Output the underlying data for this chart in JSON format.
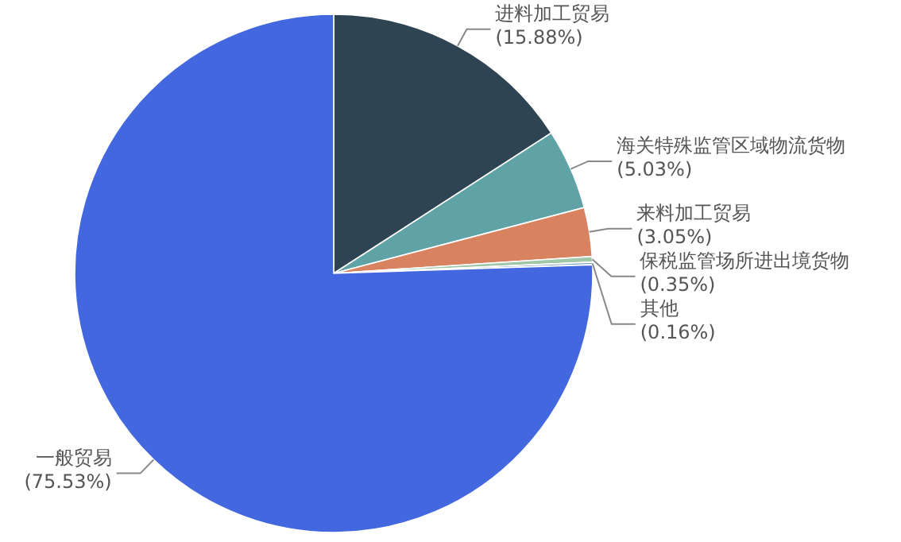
{
  "chart_data": {
    "type": "pie",
    "categories": [
      "进料加工贸易",
      "海关特殊监管区域物流货物",
      "来料加工贸易",
      "保税监管场所进出境货物",
      "其他",
      "一般贸易"
    ],
    "values": [
      15.88,
      5.03,
      3.05,
      0.35,
      0.16,
      75.53
    ],
    "colors": [
      "#2e4453",
      "#5fa3a7",
      "#d9825f",
      "#9fc7a8",
      "#7f9fbf",
      "#4267de"
    ],
    "value_labels": [
      "(15.88%)",
      "(5.03%)",
      "(3.05%)",
      "(0.35%)",
      "(0.16%)",
      "(75.53%)"
    ]
  }
}
